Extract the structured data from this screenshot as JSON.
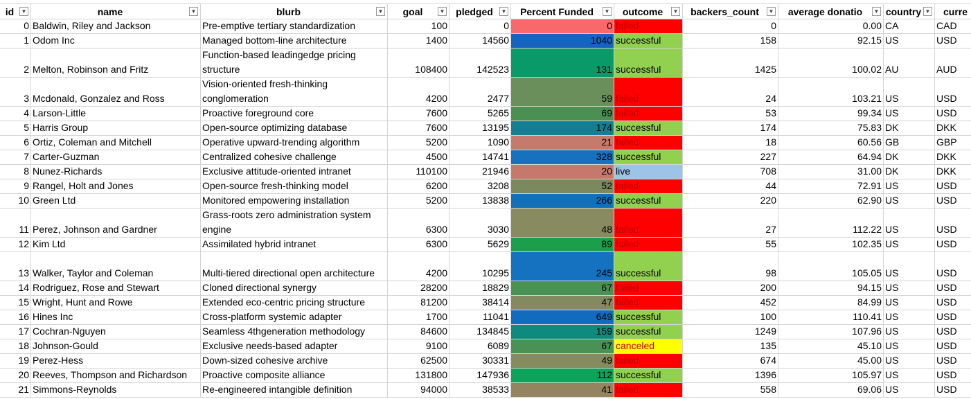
{
  "sheet": {
    "headers": [
      "id",
      "name",
      "blurb",
      "goal",
      "pledged",
      "Percent Funded",
      "outcome",
      "backers_count",
      "average donatio",
      "country",
      "curre"
    ],
    "rows": [
      {
        "id": "0",
        "name": "Baldwin, Riley and Jackson",
        "blurb": "Pre-emptive tertiary standardization",
        "goal": "100",
        "pledged": "0",
        "pct": "0",
        "outcome": "failed",
        "backers": "0",
        "avg": "0.00",
        "country": "CA",
        "currency": "CAD"
      },
      {
        "id": "1",
        "name": "Odom Inc",
        "blurb": "Managed bottom-line architecture",
        "goal": "1400",
        "pledged": "14560",
        "pct": "1040",
        "outcome": "successful",
        "backers": "158",
        "avg": "92.15",
        "country": "US",
        "currency": "USD"
      },
      {
        "id": "2",
        "name": "Melton, Robinson and Fritz",
        "blurb": "Function-based leadingedge pricing structure",
        "goal": "108400",
        "pledged": "142523",
        "pct": "131",
        "outcome": "successful",
        "backers": "1425",
        "avg": "100.02",
        "country": "AU",
        "currency": "AUD"
      },
      {
        "id": "3",
        "name": "Mcdonald, Gonzalez and Ross",
        "blurb": "Vision-oriented fresh-thinking conglomeration",
        "goal": "4200",
        "pledged": "2477",
        "pct": "59",
        "outcome": "failed",
        "backers": "24",
        "avg": "103.21",
        "country": "US",
        "currency": "USD"
      },
      {
        "id": "4",
        "name": "Larson-Little",
        "blurb": "Proactive foreground core",
        "goal": "7600",
        "pledged": "5265",
        "pct": "69",
        "outcome": "failed",
        "backers": "53",
        "avg": "99.34",
        "country": "US",
        "currency": "USD"
      },
      {
        "id": "5",
        "name": "Harris Group",
        "blurb": "Open-source optimizing database",
        "goal": "7600",
        "pledged": "13195",
        "pct": "174",
        "outcome": "successful",
        "backers": "174",
        "avg": "75.83",
        "country": "DK",
        "currency": "DKK"
      },
      {
        "id": "6",
        "name": "Ortiz, Coleman and Mitchell",
        "blurb": "Operative upward-trending algorithm",
        "goal": "5200",
        "pledged": "1090",
        "pct": "21",
        "outcome": "failed",
        "backers": "18",
        "avg": "60.56",
        "country": "GB",
        "currency": "GBP"
      },
      {
        "id": "7",
        "name": "Carter-Guzman",
        "blurb": "Centralized cohesive challenge",
        "goal": "4500",
        "pledged": "14741",
        "pct": "328",
        "outcome": "successful",
        "backers": "227",
        "avg": "64.94",
        "country": "DK",
        "currency": "DKK"
      },
      {
        "id": "8",
        "name": "Nunez-Richards",
        "blurb": "Exclusive attitude-oriented intranet",
        "goal": "110100",
        "pledged": "21946",
        "pct": "20",
        "outcome": "live",
        "backers": "708",
        "avg": "31.00",
        "country": "DK",
        "currency": "DKK"
      },
      {
        "id": "9",
        "name": "Rangel, Holt and Jones",
        "blurb": "Open-source fresh-thinking model",
        "goal": "6200",
        "pledged": "3208",
        "pct": "52",
        "outcome": "failed",
        "backers": "44",
        "avg": "72.91",
        "country": "US",
        "currency": "USD"
      },
      {
        "id": "10",
        "name": "Green Ltd",
        "blurb": "Monitored empowering installation",
        "goal": "5200",
        "pledged": "13838",
        "pct": "266",
        "outcome": "successful",
        "backers": "220",
        "avg": "62.90",
        "country": "US",
        "currency": "USD"
      },
      {
        "id": "11",
        "name": "Perez, Johnson and Gardner",
        "blurb": "Grass-roots zero administration system engine",
        "goal": "6300",
        "pledged": "3030",
        "pct": "48",
        "outcome": "failed",
        "backers": "27",
        "avg": "112.22",
        "country": "US",
        "currency": "USD"
      },
      {
        "id": "12",
        "name": "Kim Ltd",
        "blurb": "Assimilated hybrid intranet",
        "goal": "6300",
        "pledged": "5629",
        "pct": "89",
        "outcome": "failed",
        "backers": "55",
        "avg": "102.35",
        "country": "US",
        "currency": "USD"
      },
      {
        "id": "13",
        "name": "Walker, Taylor and Coleman",
        "blurb": "Multi-tiered directional open architecture",
        "goal": "4200",
        "pledged": "10295",
        "pct": "245",
        "outcome": "successful",
        "backers": "98",
        "avg": "105.05",
        "country": "US",
        "currency": "USD"
      },
      {
        "id": "14",
        "name": "Rodriguez, Rose and Stewart",
        "blurb": "Cloned directional synergy",
        "goal": "28200",
        "pledged": "18829",
        "pct": "67",
        "outcome": "failed",
        "backers": "200",
        "avg": "94.15",
        "country": "US",
        "currency": "USD"
      },
      {
        "id": "15",
        "name": "Wright, Hunt and Rowe",
        "blurb": "Extended eco-centric pricing structure",
        "goal": "81200",
        "pledged": "38414",
        "pct": "47",
        "outcome": "failed",
        "backers": "452",
        "avg": "84.99",
        "country": "US",
        "currency": "USD"
      },
      {
        "id": "16",
        "name": "Hines Inc",
        "blurb": "Cross-platform systemic adapter",
        "goal": "1700",
        "pledged": "11041",
        "pct": "649",
        "outcome": "successful",
        "backers": "100",
        "avg": "110.41",
        "country": "US",
        "currency": "USD"
      },
      {
        "id": "17",
        "name": "Cochran-Nguyen",
        "blurb": "Seamless 4thgeneration methodology",
        "goal": "84600",
        "pledged": "134845",
        "pct": "159",
        "outcome": "successful",
        "backers": "1249",
        "avg": "107.96",
        "country": "US",
        "currency": "USD"
      },
      {
        "id": "18",
        "name": "Johnson-Gould",
        "blurb": "Exclusive needs-based adapter",
        "goal": "9100",
        "pledged": "6089",
        "pct": "67",
        "outcome": "canceled",
        "backers": "135",
        "avg": "45.10",
        "country": "US",
        "currency": "USD"
      },
      {
        "id": "19",
        "name": "Perez-Hess",
        "blurb": "Down-sized cohesive archive",
        "goal": "62500",
        "pledged": "30331",
        "pct": "49",
        "outcome": "failed",
        "backers": "674",
        "avg": "45.00",
        "country": "US",
        "currency": "USD"
      },
      {
        "id": "20",
        "name": "Reeves, Thompson and Richardson",
        "blurb": "Proactive composite alliance",
        "goal": "131800",
        "pledged": "147936",
        "pct": "112",
        "outcome": "successful",
        "backers": "1396",
        "avg": "105.97",
        "country": "US",
        "currency": "USD"
      },
      {
        "id": "21",
        "name": "Simmons-Reynolds",
        "blurb": "Re-engineered intangible definition",
        "goal": "94000",
        "pledged": "38533",
        "pct": "41",
        "outcome": "failed",
        "backers": "558",
        "avg": "69.06",
        "country": "US",
        "currency": "USD"
      }
    ]
  },
  "colors": {
    "outcome": {
      "failed": "#ff0000",
      "successful": "#92d050",
      "live": "#9dc3e6",
      "canceled": "#ffff00"
    },
    "outcome_text": {
      "failed": "#c00000",
      "successful": "#000000",
      "live": "#000000",
      "canceled": "#c00000"
    },
    "pct": {
      "0": "#f8696b",
      "1040": "#1565c0",
      "131": "#0a9a6a",
      "59": "#6a8f5a",
      "69": "#4b9053",
      "174": "#137f92",
      "21": "#c6796d",
      "328": "#1771be",
      "20": "#c7786c",
      "52": "#7c885d",
      "266": "#136fb8",
      "48": "#888a5f",
      "89": "#1b9f4a",
      "245": "#1572c0",
      "67": "#4a9155",
      "47": "#838a5f",
      "649": "#136bbe",
      "159": "#0e8a7f",
      "49": "#858c5f",
      "112": "#0ea35b",
      "41": "#958460"
    }
  }
}
